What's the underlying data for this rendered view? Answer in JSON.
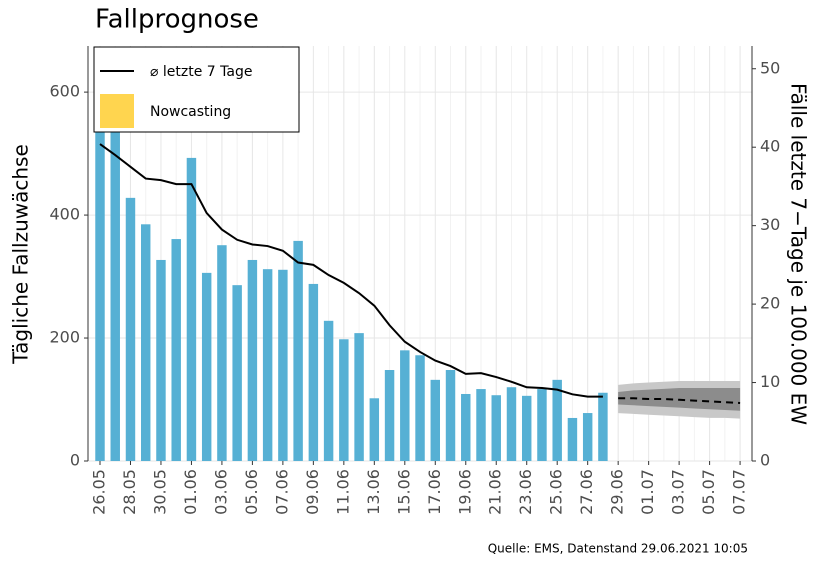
{
  "chart_data": {
    "type": "bar-line",
    "title": "Fallprognose",
    "y_label": "Tägliche Fallzuwächse",
    "y2_label": "Fälle letzte 7−Tage je 100.000 EW",
    "source": "Quelle: EMS, Datenstand 29.06.2021 10:05",
    "categories": [
      "26.05",
      null,
      "28.05",
      null,
      "30.05",
      null,
      "01.06",
      null,
      "03.06",
      null,
      "05.06",
      null,
      "07.06",
      null,
      "09.06",
      null,
      "11.06",
      null,
      "13.06",
      null,
      "15.06",
      null,
      "17.06",
      null,
      "19.06",
      null,
      "21.06",
      null,
      "23.06",
      null,
      "25.06",
      null,
      "27.06",
      null,
      "29.06",
      null,
      "01.07",
      null,
      "03.07",
      null,
      "05.07",
      null,
      "07.07"
    ],
    "bars": {
      "color": "#56b0d4",
      "values": [
        540,
        540,
        428,
        385,
        327,
        361,
        493,
        306,
        351,
        286,
        327,
        312,
        311,
        358,
        288,
        228,
        198,
        208,
        102,
        148,
        180,
        172,
        132,
        148,
        109,
        117,
        107,
        120,
        106,
        117,
        132,
        70,
        78,
        111,
        null,
        null,
        null,
        null,
        null,
        null,
        null,
        null,
        null
      ]
    },
    "series": [
      {
        "name": "⌀ letzte 7 Tage",
        "color": "#000000",
        "axis": "y2",
        "values": [
          40.4,
          39,
          37.5,
          36,
          35.8,
          35.3,
          35.3,
          31.6,
          29.5,
          28.2,
          27.6,
          27.4,
          26.8,
          25.3,
          25,
          23.7,
          22.7,
          21.4,
          19.8,
          17.3,
          15.2,
          13.9,
          12.8,
          12.1,
          11.1,
          11.2,
          10.7,
          10.1,
          9.4,
          9.3,
          9.1,
          8.5,
          8.2,
          8.2,
          null,
          null,
          null,
          null,
          null,
          null,
          null,
          null,
          null
        ]
      },
      {
        "name": "Nowcasting",
        "color": "#ffd54f"
      }
    ],
    "forecast": {
      "axis": "y2",
      "values": [
        null,
        null,
        null,
        null,
        null,
        null,
        null,
        null,
        null,
        null,
        null,
        null,
        null,
        null,
        null,
        null,
        null,
        null,
        null,
        null,
        null,
        null,
        null,
        null,
        null,
        null,
        null,
        null,
        null,
        null,
        null,
        null,
        null,
        null,
        8.0,
        8.0,
        7.9,
        7.9,
        7.8,
        7.7,
        7.6,
        7.5,
        7.4
      ],
      "inner_lower": [
        null,
        null,
        null,
        null,
        null,
        null,
        null,
        null,
        null,
        null,
        null,
        null,
        null,
        null,
        null,
        null,
        null,
        null,
        null,
        null,
        null,
        null,
        null,
        null,
        null,
        null,
        null,
        null,
        null,
        null,
        null,
        null,
        null,
        null,
        7.2,
        7.1,
        7.0,
        6.9,
        6.8,
        6.7,
        6.6,
        6.5,
        6.4
      ],
      "inner_upper": [
        null,
        null,
        null,
        null,
        null,
        null,
        null,
        null,
        null,
        null,
        null,
        null,
        null,
        null,
        null,
        null,
        null,
        null,
        null,
        null,
        null,
        null,
        null,
        null,
        null,
        null,
        null,
        null,
        null,
        null,
        null,
        null,
        null,
        null,
        8.8,
        9.0,
        9.1,
        9.2,
        9.3,
        9.3,
        9.3,
        9.3,
        9.3
      ],
      "outer_lower": [
        null,
        null,
        null,
        null,
        null,
        null,
        null,
        null,
        null,
        null,
        null,
        null,
        null,
        null,
        null,
        null,
        null,
        null,
        null,
        null,
        null,
        null,
        null,
        null,
        null,
        null,
        null,
        null,
        null,
        null,
        null,
        null,
        null,
        null,
        6.1,
        6.0,
        5.9,
        5.8,
        5.7,
        5.6,
        5.5,
        5.5,
        5.4
      ],
      "outer_upper": [
        null,
        null,
        null,
        null,
        null,
        null,
        null,
        null,
        null,
        null,
        null,
        null,
        null,
        null,
        null,
        null,
        null,
        null,
        null,
        null,
        null,
        null,
        null,
        null,
        null,
        null,
        null,
        null,
        null,
        null,
        null,
        null,
        null,
        null,
        9.7,
        9.9,
        10.0,
        10.1,
        10.2,
        10.2,
        10.2,
        10.2,
        10.2
      ],
      "inner_color": "#8c8c8c",
      "outer_color": "#c8c8c8"
    },
    "ylim": [
      0,
      675
    ],
    "yticks": [
      0,
      200,
      400,
      600
    ],
    "y2lim": [
      0,
      52.9
    ],
    "y2ticks": [
      0,
      10,
      20,
      30,
      40,
      50
    ],
    "grid": true
  }
}
